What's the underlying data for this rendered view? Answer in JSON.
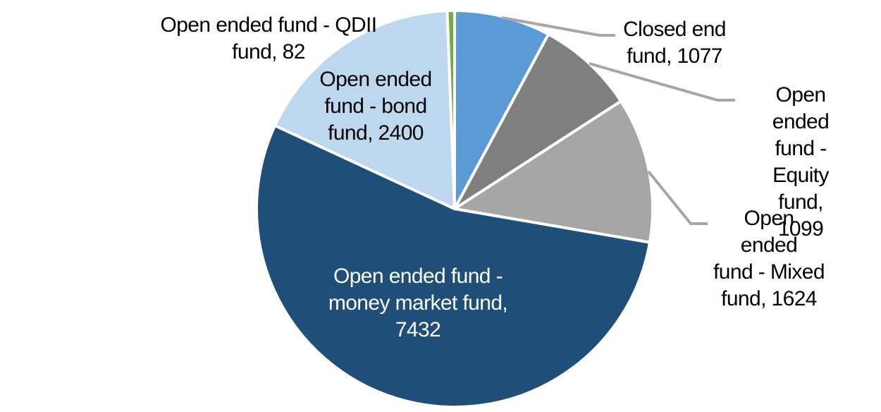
{
  "chart_data": {
    "type": "pie",
    "title": "",
    "total": 13714,
    "start_angle_deg": 0,
    "direction": "clockwise",
    "legend": "none",
    "background_color": "#FFFFFF",
    "slice_border_color": "#FFFFFF",
    "leader_line_color": "#A6A6A6",
    "slices": [
      {
        "id": "closed-end-fund",
        "name": "Closed end fund",
        "value": 1077,
        "color": "#5B9BD5",
        "label": "Closed end\nfund, 1077",
        "label_position": "outside",
        "text_color": "#000000",
        "leader_line": true
      },
      {
        "id": "equity-fund",
        "name": "Open ended fund - Equity fund",
        "value": 1099,
        "color": "#7F7F7F",
        "label": "Open ended\nfund - Equity\nfund, 1099",
        "label_position": "outside",
        "text_color": "#000000",
        "leader_line": true
      },
      {
        "id": "mixed-fund",
        "name": "Open ended fund - Mixed fund",
        "value": 1624,
        "color": "#A6A6A6",
        "label": "Open ended\nfund - Mixed\nfund, 1624",
        "label_position": "outside",
        "text_color": "#000000",
        "leader_line": true
      },
      {
        "id": "money-market-fund",
        "name": "Open ended fund - money market fund",
        "value": 7432,
        "color": "#1F4E79",
        "label": "Open ended fund -\nmoney market fund,\n7432",
        "label_position": "inside",
        "text_color": "#FFFFFF",
        "leader_line": false
      },
      {
        "id": "bond-fund",
        "name": "Open ended fund - bond fund",
        "value": 2400,
        "color": "#BDD7EE",
        "label": "Open ended\nfund - bond\nfund, 2400",
        "label_position": "inside",
        "text_color": "#000000",
        "leader_line": false
      },
      {
        "id": "qdii-fund",
        "name": "Open ended fund - QDII fund",
        "value": 82,
        "color": "#70AD47",
        "label": "Open ended fund - QDII\nfund, 82",
        "label_position": "outside",
        "text_color": "#000000",
        "leader_line": false
      }
    ]
  }
}
